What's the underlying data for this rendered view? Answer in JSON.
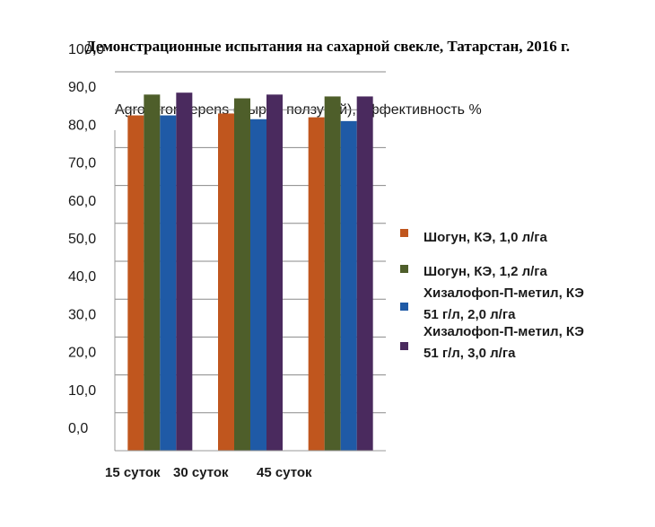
{
  "page_title": "Демонстрационные испытания на сахарной свекле, Татарстан, 2016 г.",
  "chart_data": {
    "type": "bar",
    "title": "Agropyron repens (Пырей ползучий), эффективность %",
    "xlabel": "",
    "ylabel": "",
    "categories": [
      "15 суток",
      "30 суток",
      "45 суток"
    ],
    "ytick_labels": [
      "0,0",
      "10,0",
      "20,0",
      "30,0",
      "40,0",
      "50,0",
      "60,0",
      "70,0",
      "80,0",
      "90,0",
      "100,0"
    ],
    "ylim": [
      0,
      100
    ],
    "grid": true,
    "legend_position": "right",
    "series": [
      {
        "name": "Шогун, КЭ, 1,0 л/га",
        "color": "#c0561e",
        "values": [
          88.5,
          89,
          88
        ]
      },
      {
        "name": "Шогун, КЭ, 1,2 л/га",
        "color": "#4e5e2a",
        "values": [
          94,
          93,
          93.5
        ]
      },
      {
        "name": "Хизалофоп-П-метил, КЭ 51 г/л, 2,0 л/га",
        "color": "#1f5aa6",
        "values": [
          88.5,
          87.5,
          87
        ]
      },
      {
        "name": "Хизалофоп-П-метил, КЭ 51 г/л, 3,0 л/га",
        "color": "#4a2a5e",
        "values": [
          94.5,
          94,
          93.5
        ]
      }
    ]
  }
}
